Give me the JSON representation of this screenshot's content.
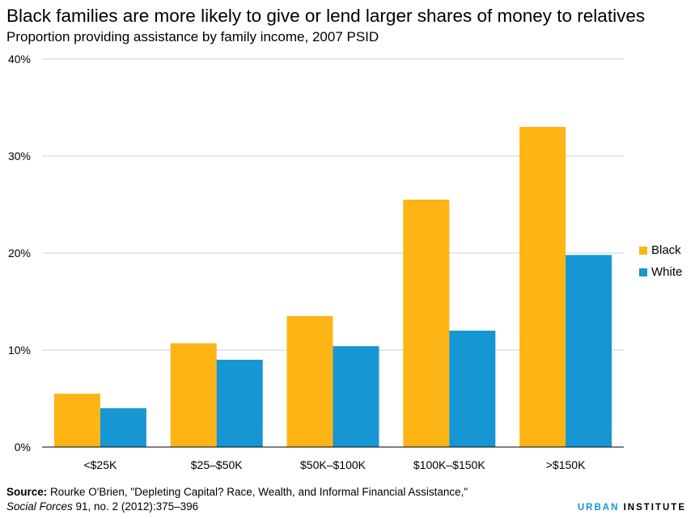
{
  "chart_data": {
    "type": "bar",
    "title": "Black families are more likely to give or lend larger shares of money to relatives",
    "subtitle": "Proportion providing assistance by family income, 2007 PSID",
    "categories": [
      "<$25K",
      "$25–$50K",
      "$50K–$100K",
      "$100K–$150K",
      ">$150K"
    ],
    "series": [
      {
        "name": "Black",
        "color": "#fdb515",
        "values": [
          5.5,
          10.7,
          13.5,
          25.5,
          33.0
        ]
      },
      {
        "name": "White",
        "color": "#1696d2",
        "values": [
          4.0,
          9.0,
          10.4,
          12.0,
          19.8
        ]
      }
    ],
    "ylim": [
      0,
      40
    ],
    "yticks": [
      0,
      10,
      20,
      30,
      40
    ],
    "ytick_labels": [
      "0%",
      "10%",
      "20%",
      "30%",
      "40%"
    ],
    "grid": true,
    "legend_position": "right"
  },
  "source": {
    "label": "Source:",
    "text": " Rourke O'Brien, \"Depleting Capital? Race, Wealth, and Informal Financial Assistance,\"",
    "journal": "Social Forces",
    "citation": " 91, no. 2 (2012):375–396"
  },
  "brand": {
    "urban": "URBAN",
    "institute": " INSTITUTE"
  }
}
